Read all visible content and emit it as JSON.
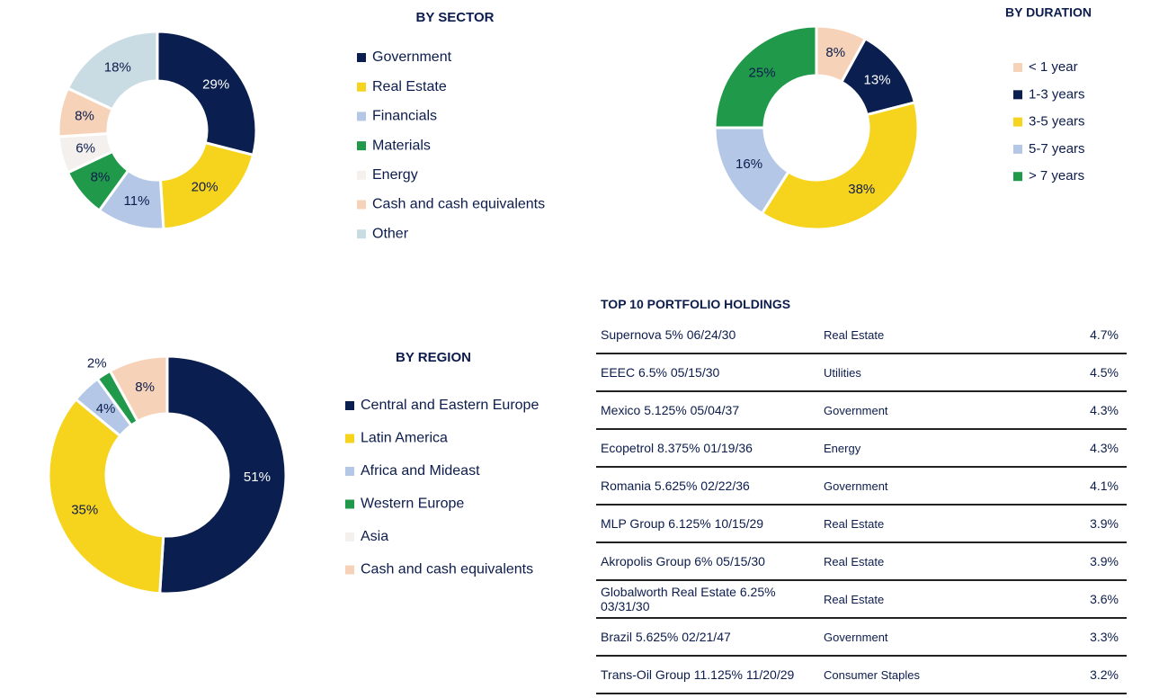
{
  "chart_data": [
    {
      "type": "donut",
      "title": "BY SECTOR",
      "categories": [
        "Government",
        "Real Estate",
        "Financials",
        "Materials",
        "Energy",
        "Cash and cash equivalents",
        "Other"
      ],
      "values": [
        29,
        20,
        11,
        8,
        6,
        8,
        18
      ],
      "value_labels": [
        "29%",
        "20%",
        "11%",
        "8%",
        "6%",
        "8%",
        "18%"
      ],
      "colors": [
        "#0a1f4f",
        "#f6d31c",
        "#b4c7e7",
        "#21994a",
        "#f3f0ed",
        "#f6d3b8",
        "#c9dce3"
      ]
    },
    {
      "type": "donut",
      "title": "BY DURATION",
      "categories": [
        "< 1 year",
        "1-3 years",
        "3-5 years",
        "5-7 years",
        "> 7 years"
      ],
      "values": [
        8,
        13,
        38,
        16,
        25
      ],
      "value_labels": [
        "8%",
        "13%",
        "38%",
        "16%",
        "25%"
      ],
      "colors": [
        "#f6d3b8",
        "#0a1f4f",
        "#f6d31c",
        "#b4c7e7",
        "#21994a"
      ]
    },
    {
      "type": "donut",
      "title": "BY REGION",
      "categories": [
        "Central and Eastern Europe",
        "Latin America",
        "Africa and Mideast",
        "Western Europe",
        "Asia",
        "Cash and cash equivalents"
      ],
      "values": [
        51,
        35,
        4,
        2,
        0,
        8
      ],
      "value_labels": [
        "51%",
        "35%",
        "4%",
        "2%",
        null,
        "8%"
      ],
      "colors": [
        "#0a1f4f",
        "#f6d31c",
        "#b4c7e7",
        "#21994a",
        "#f3f0ed",
        "#f6d3b8"
      ]
    }
  ],
  "table": {
    "title": "TOP 10 PORTFOLIO HOLDINGS",
    "rows": [
      [
        "Supernova 5% 06/24/30",
        "Real Estate",
        "4.7%"
      ],
      [
        "EEEC 6.5% 05/15/30",
        "Utilities",
        "4.5%"
      ],
      [
        "Mexico 5.125% 05/04/37",
        "Government",
        "4.3%"
      ],
      [
        "Ecopetrol 8.375% 01/19/36",
        "Energy",
        "4.3%"
      ],
      [
        "Romania 5.625% 02/22/36",
        "Government",
        "4.1%"
      ],
      [
        "MLP Group 6.125% 10/15/29",
        "Real Estate",
        "3.9%"
      ],
      [
        "Akropolis Group 6% 05/15/30",
        "Real Estate",
        "3.9%"
      ],
      [
        "Globalworth Real Estate 6.25% 03/31/30",
        "Real Estate",
        "3.6%"
      ],
      [
        "Brazil 5.625% 02/21/47",
        "Government",
        "3.3%"
      ],
      [
        "Trans-Oil Group 11.125% 11/20/29",
        "Consumer Staples",
        "3.2%"
      ]
    ]
  }
}
